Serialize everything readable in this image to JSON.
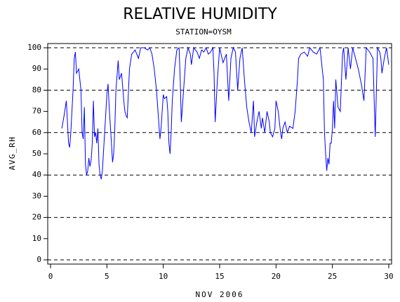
{
  "chart_data": {
    "type": "line",
    "title": "RELATIVE HUMIDITY",
    "subtitle": "STATION=OYSM",
    "y_label": "AVG_RH",
    "x_label": "NOV 2006",
    "xlim": [
      -0.25,
      30.25
    ],
    "xticks": [
      0,
      5,
      10,
      15,
      20,
      25,
      30
    ],
    "ylim": [
      -2,
      102
    ],
    "yticks": [
      0,
      10,
      20,
      30,
      40,
      50,
      60,
      70,
      80,
      90,
      100
    ],
    "grid_lines": [
      0,
      20,
      40,
      60,
      80,
      100
    ],
    "series": [
      {
        "name": "AVG_RH",
        "color": "#0000ff",
        "x": [
          1.0,
          1.2,
          1.4,
          1.5,
          1.6,
          1.7,
          1.8,
          2.0,
          2.1,
          2.2,
          2.3,
          2.5,
          2.6,
          2.7,
          2.8,
          2.9,
          3.0,
          3.1,
          3.2,
          3.3,
          3.4,
          3.5,
          3.6,
          3.7,
          3.8,
          3.9,
          4.0,
          4.1,
          4.2,
          4.3,
          4.4,
          4.5,
          4.6,
          4.8,
          5.0,
          5.1,
          5.2,
          5.4,
          5.5,
          5.6,
          5.7,
          5.8,
          6.0,
          6.1,
          6.3,
          6.5,
          6.6,
          6.7,
          6.8,
          7.0,
          7.2,
          7.5,
          7.8,
          8.0,
          8.3,
          8.6,
          8.8,
          9.0,
          9.2,
          9.4,
          9.6,
          9.7,
          9.8,
          10.0,
          10.1,
          10.3,
          10.4,
          10.5,
          10.6,
          10.7,
          10.8,
          11.0,
          11.2,
          11.4,
          11.5,
          11.6,
          11.8,
          12.0,
          12.2,
          12.4,
          12.5,
          12.7,
          13.0,
          13.2,
          13.4,
          13.6,
          13.8,
          14.0,
          14.2,
          14.4,
          14.5,
          14.6,
          14.8,
          15.0,
          15.3,
          15.6,
          15.8,
          16.0,
          16.2,
          16.4,
          16.6,
          16.8,
          17.0,
          17.2,
          17.4,
          17.6,
          17.8,
          18.0,
          18.1,
          18.3,
          18.5,
          18.7,
          18.8,
          19.0,
          19.2,
          19.4,
          19.5,
          19.7,
          19.9,
          20.0,
          20.2,
          20.4,
          20.5,
          20.6,
          20.8,
          21.0,
          21.2,
          21.5,
          21.7,
          21.9,
          22.0,
          22.2,
          22.5,
          22.8,
          23.0,
          23.3,
          23.6,
          23.9,
          24.0,
          24.2,
          24.3,
          24.4,
          24.5,
          24.6,
          24.7,
          24.8,
          24.9,
          25.0,
          25.1,
          25.2,
          25.3,
          25.5,
          25.7,
          25.9,
          26.0,
          26.2,
          26.4,
          26.6,
          26.8,
          27.0,
          27.3,
          27.6,
          27.8,
          28.0,
          28.3,
          28.6,
          28.8,
          29.0,
          29.2,
          29.3,
          29.4,
          29.6,
          29.8,
          30.0
        ],
        "values": [
          62,
          68,
          75,
          65,
          55,
          53,
          60,
          80,
          95,
          98,
          88,
          90,
          85,
          80,
          60,
          57,
          72,
          45,
          40,
          42,
          48,
          44,
          47,
          55,
          75,
          58,
          60,
          55,
          62,
          45,
          40,
          38,
          42,
          60,
          78,
          83,
          72,
          55,
          46,
          50,
          62,
          80,
          94,
          85,
          88,
          75,
          70,
          68,
          67,
          90,
          97,
          99,
          95,
          100,
          100,
          99,
          100,
          97,
          90,
          80,
          65,
          57,
          62,
          78,
          76,
          77,
          70,
          55,
          50,
          60,
          75,
          90,
          99,
          100,
          85,
          65,
          80,
          95,
          100,
          97,
          92,
          100,
          98,
          95,
          99,
          98,
          100,
          97,
          98,
          100,
          88,
          65,
          85,
          100,
          93,
          97,
          75,
          95,
          100,
          98,
          80,
          95,
          100,
          85,
          72,
          65,
          60,
          75,
          58,
          65,
          70,
          62,
          67,
          60,
          70,
          65,
          60,
          58,
          62,
          75,
          70,
          60,
          57,
          62,
          65,
          60,
          63,
          62,
          70,
          85,
          95,
          97,
          98,
          96,
          100,
          98,
          97,
          100,
          95,
          85,
          60,
          50,
          42,
          48,
          45,
          55,
          55,
          62,
          75,
          62,
          85,
          72,
          70,
          97,
          100,
          85,
          100,
          90,
          100,
          96,
          90,
          82,
          75,
          100,
          98,
          95,
          58,
          100,
          98,
          95,
          88,
          95,
          100,
          92
        ]
      }
    ]
  }
}
